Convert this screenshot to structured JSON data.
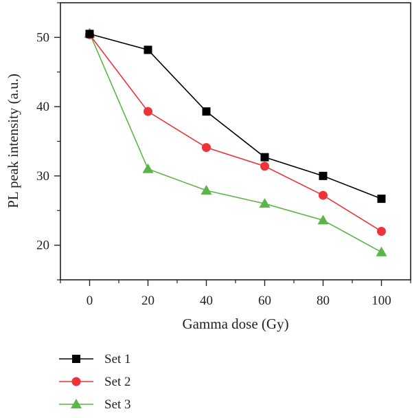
{
  "chart_data": {
    "type": "line",
    "xlabel": "Gamma dose (Gy)",
    "ylabel": "PL peak intensity (a.u.)",
    "xlim": [
      -10,
      110
    ],
    "ylim": [
      15,
      55
    ],
    "x_ticks": [
      0,
      20,
      40,
      60,
      80,
      100
    ],
    "y_ticks": [
      20,
      30,
      40,
      50
    ],
    "x_tick_labels": [
      "0",
      "20",
      "40",
      "60",
      "80",
      "100"
    ],
    "y_tick_labels": [
      "20",
      "30",
      "40",
      "50"
    ],
    "grid": false,
    "legend_position": "below-left",
    "x": [
      0,
      20,
      40,
      60,
      80,
      100
    ],
    "series": [
      {
        "name": "Set 1",
        "values": [
          50.5,
          48.2,
          39.3,
          32.7,
          30.0,
          26.7
        ],
        "color": "#000000",
        "marker": "square"
      },
      {
        "name": "Set 2",
        "values": [
          50.4,
          39.3,
          34.1,
          31.4,
          27.2,
          22.0
        ],
        "color": "#ee3338",
        "marker": "circle"
      },
      {
        "name": "Set 3",
        "values": [
          50.6,
          31.0,
          27.9,
          26.0,
          23.6,
          19.0
        ],
        "color": "#5cb547",
        "marker": "triangle"
      }
    ]
  }
}
